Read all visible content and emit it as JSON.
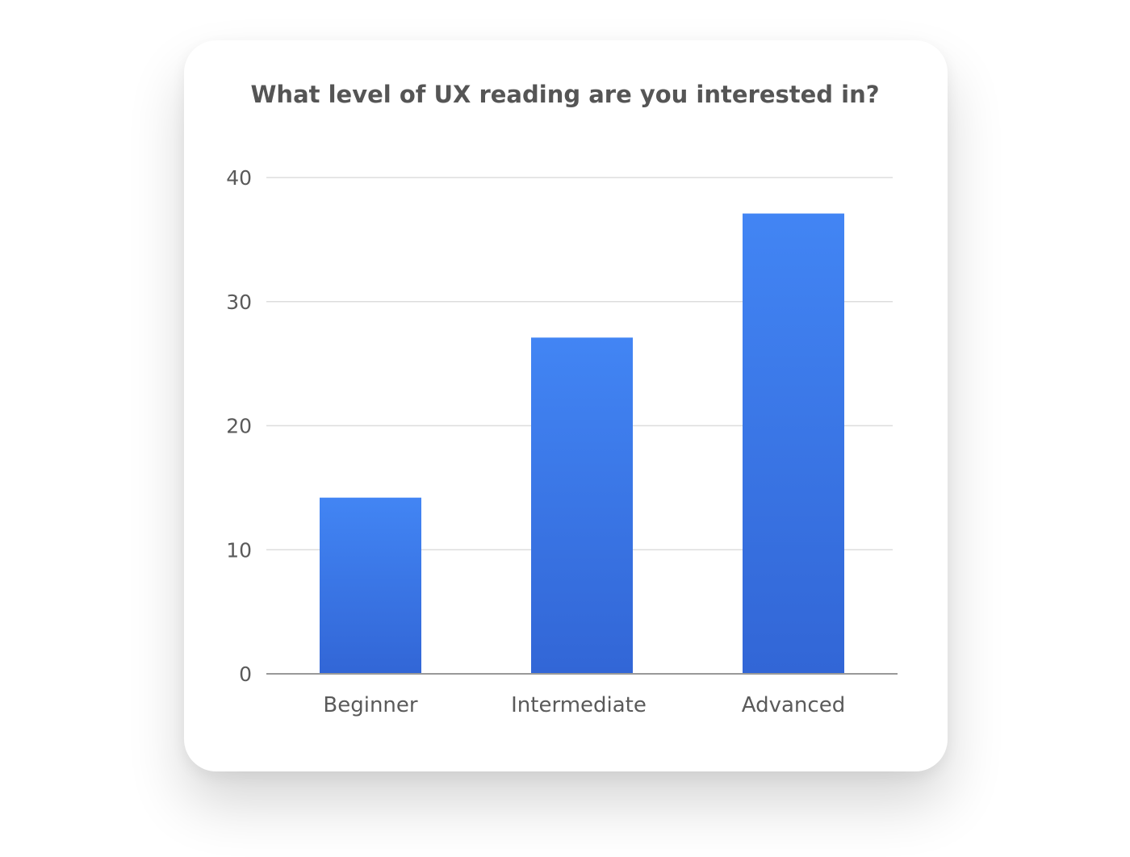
{
  "chart_data": {
    "type": "bar",
    "title": "What level of UX reading are you interested in?",
    "xlabel": "",
    "ylabel": "",
    "categories": [
      "Beginner",
      "Intermediate",
      "Advanced"
    ],
    "values": [
      14.2,
      27.1,
      37.1
    ],
    "ylim": [
      0,
      40
    ],
    "yticks": [
      0,
      10,
      20,
      30,
      40
    ],
    "ytick_labels": [
      "0",
      "10",
      "20",
      "30",
      "40"
    ],
    "grid": true,
    "legend": "none",
    "colors": {
      "bar_top": "#4285f4",
      "bar_bottom": "#3266d6",
      "grid": "#dddddd",
      "axis": "#999999",
      "text": "#5a5a5a",
      "title": "#555555"
    }
  }
}
